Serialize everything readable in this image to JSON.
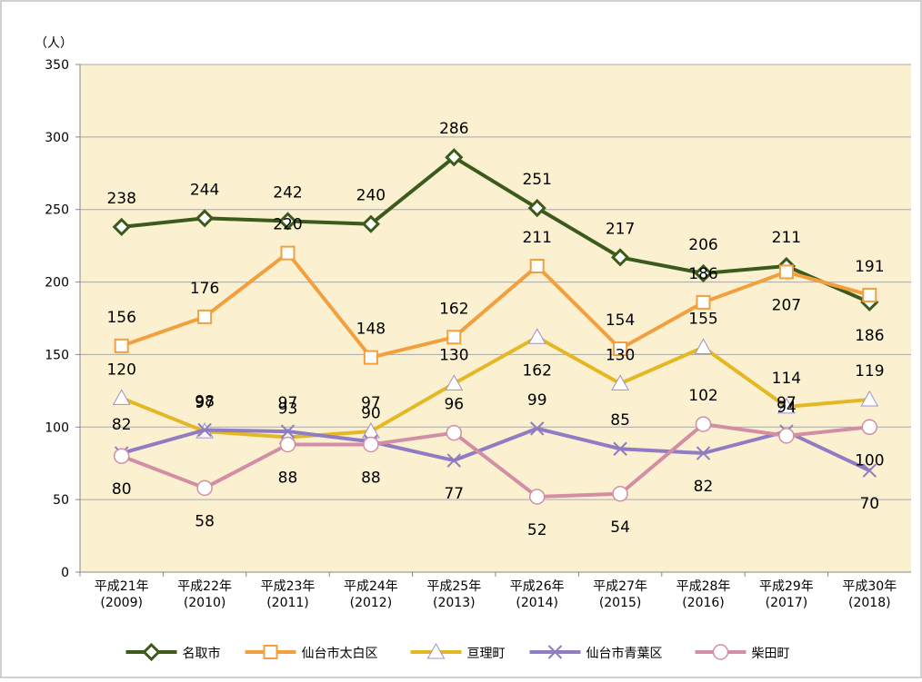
{
  "chart_data": {
    "type": "line",
    "y_unit_label": "（人）",
    "categories": [
      [
        "平成21年",
        "(2009)"
      ],
      [
        "平成22年",
        "(2010)"
      ],
      [
        "平成23年",
        "(2011)"
      ],
      [
        "平成24年",
        "(2012)"
      ],
      [
        "平成25年",
        "(2013)"
      ],
      [
        "平成26年",
        "(2014)"
      ],
      [
        "平成27年",
        "(2015)"
      ],
      [
        "平成28年",
        "(2016)"
      ],
      [
        "平成29年",
        "(2017)"
      ],
      [
        "平成30年",
        "(2018)"
      ]
    ],
    "series": [
      {
        "name": "名取市",
        "color": "#3c5a1c",
        "marker": "diamond",
        "values": [
          238,
          244,
          242,
          240,
          286,
          251,
          217,
          206,
          211,
          186
        ]
      },
      {
        "name": "仙台市太白区",
        "color": "#f2a03f",
        "marker": "square",
        "values": [
          156,
          176,
          220,
          148,
          162,
          211,
          154,
          186,
          207,
          191
        ]
      },
      {
        "name": "亘理町",
        "color": "#e4b825",
        "marker": "triangle",
        "values": [
          120,
          97,
          93,
          97,
          130,
          162,
          130,
          155,
          114,
          119
        ]
      },
      {
        "name": "仙台市青葉区",
        "color": "#8f7cc2",
        "marker": "x",
        "values": [
          82,
          98,
          97,
          90,
          77,
          99,
          85,
          82,
          97,
          70
        ]
      },
      {
        "name": "柴田町",
        "color": "#d18ea4",
        "marker": "circle",
        "values": [
          80,
          58,
          88,
          88,
          96,
          52,
          54,
          102,
          94,
          100
        ]
      }
    ],
    "ylim": [
      0,
      350
    ],
    "yticks": [
      0,
      50,
      100,
      150,
      200,
      250,
      300,
      350
    ],
    "grid": true,
    "legend": "bottom"
  }
}
